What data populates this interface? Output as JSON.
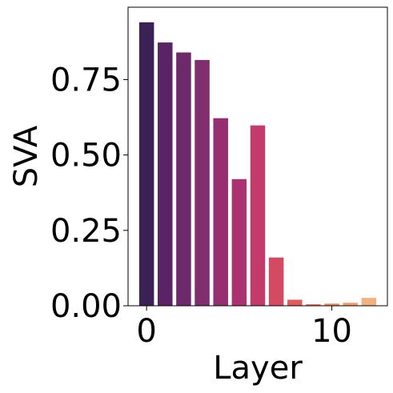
{
  "chart_data": {
    "type": "bar",
    "xlabel": "Layer",
    "ylabel": "SVA",
    "x": [
      0,
      1,
      2,
      3,
      4,
      5,
      6,
      7,
      8,
      9,
      10,
      11,
      12
    ],
    "values": [
      0.94,
      0.873,
      0.84,
      0.815,
      0.622,
      0.42,
      0.598,
      0.16,
      0.02,
      0.005,
      0.007,
      0.01,
      0.026
    ],
    "colors": [
      "#3c2156",
      "#5a2366",
      "#6d2a6b",
      "#812e6e",
      "#962f70",
      "#ab3271",
      "#c33b6b",
      "#d44a63",
      "#e15a5c",
      "#eb6e58",
      "#f1835c",
      "#f39b69",
      "#f1b07c"
    ],
    "xlim": [
      -1,
      13
    ],
    "ylim": [
      0,
      0.99
    ],
    "xticks": [
      0,
      10
    ],
    "xtick_labels": [
      "0",
      "10"
    ],
    "yticks": [
      0,
      0.25,
      0.5,
      0.75
    ],
    "ytick_labels": [
      "0.00",
      "0.25",
      "0.50",
      "0.75"
    ],
    "grid": false,
    "legend": "none"
  }
}
